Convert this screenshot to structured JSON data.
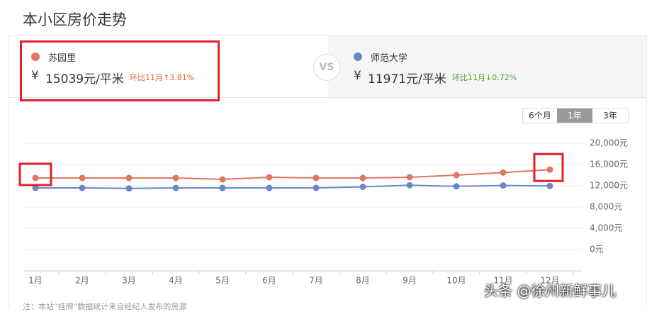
{
  "header": {
    "title": "本小区房价走势"
  },
  "compare": {
    "left": {
      "name": "苏园里",
      "currency": "¥",
      "price": "15039元/平米",
      "change": "环比11月↑3.81%"
    },
    "vs": "VS",
    "right": {
      "name": "师范大学",
      "currency": "¥",
      "price": "11971元/平米",
      "change": "环比11月↓0.72%"
    }
  },
  "buttons": [
    "6个月",
    "1年",
    "3年"
  ],
  "note": "注：本站“挂牌”数据统计来自经纪人发布的房源",
  "watermark": "头条 @徐州新鲜事儿",
  "chart_data": {
    "type": "line",
    "categories": [
      "1月",
      "2月",
      "3月",
      "4月",
      "5月",
      "6月",
      "7月",
      "8月",
      "9月",
      "10月",
      "11月",
      "12月"
    ],
    "series": [
      {
        "name": "苏园里",
        "color": "#e07562",
        "values": [
          13470,
          13470,
          13470,
          13470,
          13200,
          13600,
          13470,
          13470,
          13600,
          14000,
          14487,
          15039
        ]
      },
      {
        "name": "师范大学",
        "color": "#6a87c9",
        "values": [
          11600,
          11600,
          11500,
          11600,
          11600,
          11600,
          11600,
          11800,
          12100,
          11900,
          12058,
          11971
        ]
      }
    ],
    "ylim": [
      -4000,
      20000
    ],
    "yticks": [
      {
        "value": 0,
        "label": "0元"
      },
      {
        "value": 4000,
        "label": "4,000元"
      },
      {
        "value": 8000,
        "label": "8,000元"
      },
      {
        "value": 12000,
        "label": "12,000元"
      },
      {
        "value": 16000,
        "label": "16,000元"
      },
      {
        "value": 20000,
        "label": "20,000元"
      }
    ],
    "grid": true
  }
}
